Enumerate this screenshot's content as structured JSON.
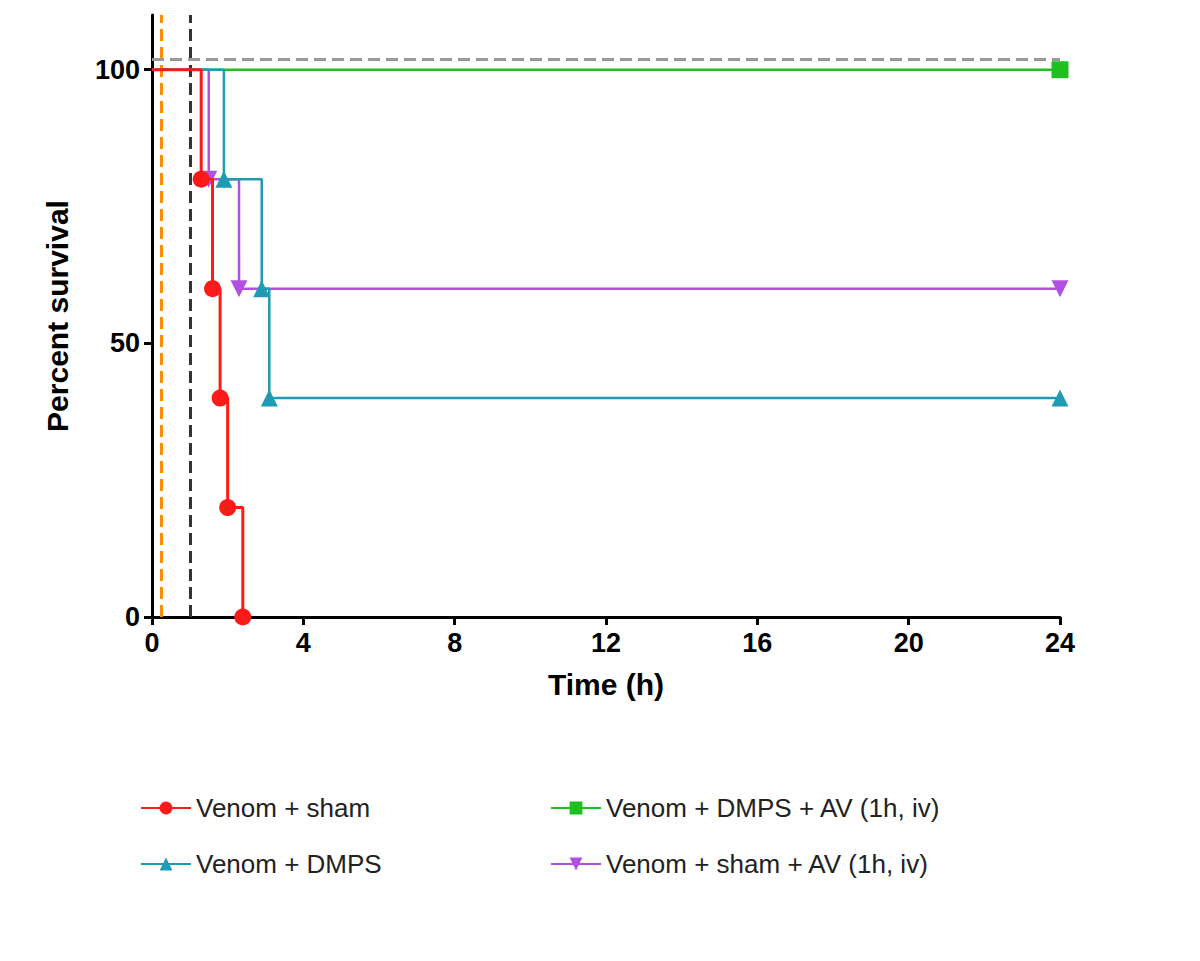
{
  "chart_data": {
    "type": "line",
    "x_label": "Time (h)",
    "y_label": "Percent survival",
    "xlim": [
      0,
      24
    ],
    "xticks": [
      0,
      4,
      8,
      12,
      16,
      20,
      24
    ],
    "ylim": [
      0,
      110
    ],
    "yticks": [
      0,
      50,
      100
    ],
    "grid": false,
    "legend": "bottom",
    "line_style": "step",
    "series": [
      {
        "name": "Venom + sham",
        "color": "#ff1a1a",
        "marker": "circle",
        "x": [
          0,
          1.3,
          1.6,
          1.8,
          2.0,
          2.4
        ],
        "values": [
          100,
          80,
          60,
          40,
          20,
          0
        ]
      },
      {
        "name": "Venom + DMPS",
        "color": "#1f9bb4",
        "marker": "triangle",
        "x": [
          0,
          1.9,
          2.9,
          3.1,
          24
        ],
        "values": [
          100,
          80,
          60,
          40,
          40
        ]
      },
      {
        "name": "Venom + DMPS + AV (1h, iv)",
        "color": "#1fbf1f",
        "marker": "square",
        "x": [
          0,
          24
        ],
        "values": [
          100,
          100
        ]
      },
      {
        "name": "Venom + sham + AV (1h, iv)",
        "color": "#b050e0",
        "marker": "triangle-down",
        "x": [
          0,
          1.5,
          2.3,
          24
        ],
        "values": [
          100,
          80,
          60,
          60
        ]
      }
    ],
    "reference_lines": [
      {
        "axis": "x",
        "value": 0.25,
        "color": "#ff8c00",
        "line_style": "dashed"
      },
      {
        "axis": "x",
        "value": 1,
        "color": "#333333",
        "line_style": "dashed"
      },
      {
        "axis": "y",
        "value": 102,
        "color": "#999999",
        "line_style": "dashed"
      }
    ]
  }
}
